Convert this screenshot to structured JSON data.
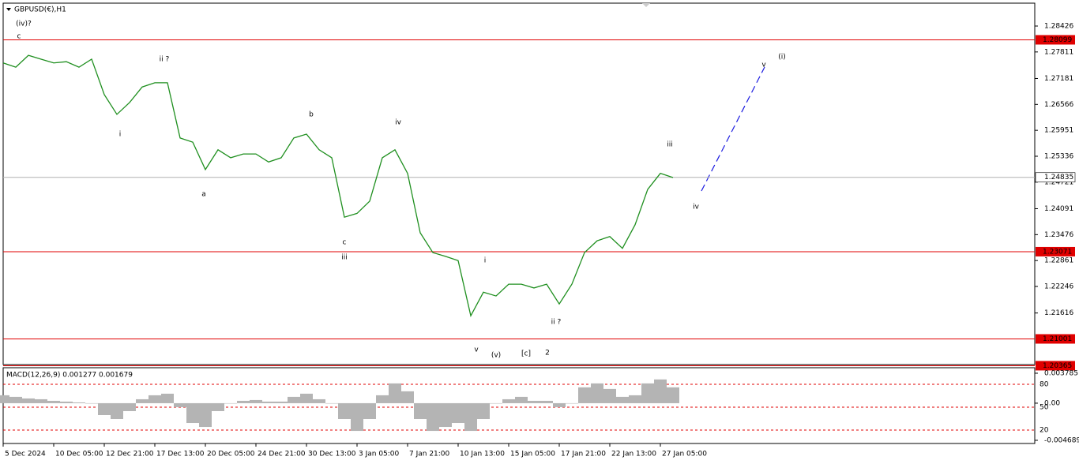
{
  "chart_data": [
    {
      "type": "line",
      "title": "GBPUSD(€),H1",
      "categories": [
        "5 Dec 2024",
        null,
        null,
        null,
        "10 Dec 05:00",
        null,
        null,
        null,
        "12 Dec 21:00",
        null,
        null,
        null,
        "17 Dec 13:00",
        null,
        null,
        null,
        "20 Dec 05:00",
        null,
        null,
        null,
        "24 Dec 21:00",
        null,
        null,
        null,
        "30 Dec 13:00",
        null,
        null,
        null,
        "3 Jan 05:00",
        null,
        null,
        null,
        "7 Jan 21:00",
        null,
        null,
        null,
        "10 Jan 13:00",
        null,
        null,
        null,
        "15 Jan 05:00",
        null,
        null,
        null,
        "17 Jan 21:00",
        null,
        null,
        null,
        "22 Jan 13:00",
        null,
        null,
        null,
        "27 Jan 05:00",
        null
      ],
      "values": [
        1.2755,
        1.2745,
        1.2773,
        1.2764,
        1.2755,
        1.2758,
        1.2745,
        1.2764,
        1.268,
        1.2633,
        1.2661,
        1.2698,
        1.2708,
        1.2708,
        1.2577,
        1.2567,
        1.2502,
        1.2549,
        1.253,
        1.2539,
        1.2539,
        1.252,
        1.253,
        1.2577,
        1.2586,
        1.2549,
        1.253,
        1.2389,
        1.2398,
        1.2427,
        1.253,
        1.2549,
        1.2493,
        1.2352,
        1.2305,
        1.2296,
        1.2286,
        1.2155,
        1.2211,
        1.2202,
        1.223,
        1.223,
        1.2221,
        1.223,
        1.2183,
        1.223,
        1.2305,
        1.2333,
        1.2343,
        1.2315,
        1.2371,
        1.2455,
        1.2493,
        1.2483
      ],
      "color": "#1f8f1f",
      "ylim": [
        1.20392,
        1.28969
      ],
      "yticks": [
        1.28426,
        1.27811,
        1.27181,
        1.26566,
        1.25951,
        1.25336,
        1.24721,
        1.24091,
        1.23476,
        1.22861,
        1.22246,
        1.21616
      ],
      "hlines": [
        1.28099,
        1.23071,
        1.21001,
        1.20365
      ],
      "hline_color": "#e00000",
      "current_price": 1.24835,
      "annotations": [
        {
          "text": "(iv)?",
          "color": "#1a1aa8"
        },
        {
          "text": "c",
          "color": "#e020e0"
        },
        {
          "text": "ii ?",
          "color": "#e020e0"
        },
        {
          "text": "i",
          "color": "#e020e0"
        },
        {
          "text": "a",
          "color": "#000000"
        },
        {
          "text": "b",
          "color": "#000000"
        },
        {
          "text": "iv",
          "color": "#e020e0"
        },
        {
          "text": "c",
          "color": "#000000"
        },
        {
          "text": "iii",
          "color": "#e020e0"
        },
        {
          "text": "v",
          "color": "#e020e0"
        },
        {
          "text": "(v)",
          "color": "#1a1aa8"
        },
        {
          "text": "[c]",
          "color": "#1a8a1a"
        },
        {
          "text": "2",
          "color": "#e00000"
        },
        {
          "text": "i",
          "color": "#e020e0"
        },
        {
          "text": "ii ?",
          "color": "#e020e0"
        },
        {
          "text": "iii",
          "color": "#e020e0"
        },
        {
          "text": "iv",
          "color": "#e020e0"
        },
        {
          "text": "v",
          "color": "#e020e0"
        },
        {
          "text": "(i)",
          "color": "#1a1aa8"
        }
      ]
    },
    {
      "type": "bar",
      "title": "MACD(12,26,9) 0.001277 0.001679",
      "values": [
        0.001,
        0.0008,
        0.0006,
        0.0005,
        0.0003,
        0.0002,
        0.0001,
        0.0,
        -0.0015,
        -0.002,
        -0.001,
        0.0005,
        0.001,
        0.0012,
        -0.0005,
        -0.0025,
        -0.003,
        -0.001,
        0.0,
        0.0003,
        0.0004,
        0.0002,
        0.0002,
        0.0008,
        0.0012,
        0.0005,
        0.0,
        -0.002,
        -0.0035,
        -0.002,
        0.001,
        0.0025,
        0.0015,
        -0.002,
        -0.0035,
        -0.003,
        -0.0025,
        -0.0035,
        -0.002,
        0.0,
        0.0005,
        0.0008,
        0.0003,
        0.0003,
        -0.0005,
        0.0,
        0.002,
        0.0025,
        0.0018,
        0.0008,
        0.001,
        0.0025,
        0.003,
        0.002
      ],
      "color": "#b4b4b4",
      "ylim": [
        -0.00509,
        0.00448
      ],
      "yticks": [
        {
          "value": 0.003785,
          "label": "0.003785"
        },
        {
          "value": 0,
          "label": "0.00"
        },
        {
          "value": -0.004689,
          "label": "-0.004689"
        }
      ],
      "y2lim": [
        2.4,
        101.7
      ],
      "y2ticks": [
        80,
        50,
        20
      ],
      "level_color": "#e00000"
    }
  ]
}
